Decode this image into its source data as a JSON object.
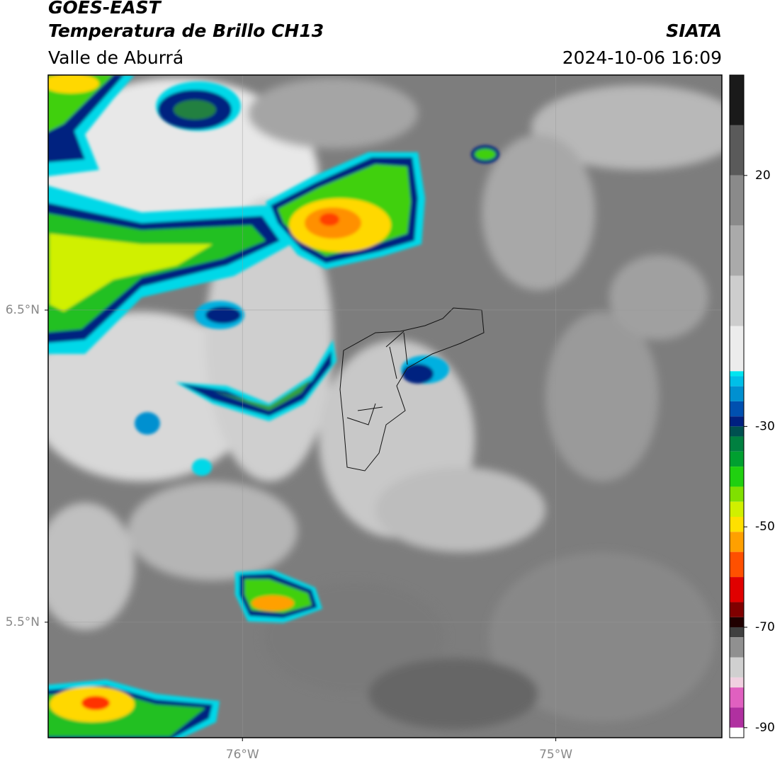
{
  "header": {
    "title": "GOES-EAST",
    "subtitle": "Temperatura de Brillo CH13",
    "source": "SIATA",
    "region": "Valle de Aburrá",
    "datetime": "2024-10-06 16:09"
  },
  "map": {
    "xlim": [
      -76.62,
      -74.47
    ],
    "ylim": [
      5.13,
      7.253
    ],
    "xticks": [
      {
        "value": -76,
        "label": "76°W"
      },
      {
        "value": -75,
        "label": "75°W"
      }
    ],
    "yticks": [
      {
        "value": 6.5,
        "label": "6.5°N"
      },
      {
        "value": 5.5,
        "label": "5.5°N"
      }
    ],
    "grid": true
  },
  "colorbar": {
    "ylim": [
      -92,
      40
    ],
    "yticks": [
      20,
      -30,
      -50,
      -70,
      -90
    ],
    "levels": [
      40,
      30,
      20,
      10,
      0,
      -10,
      -19,
      -20,
      -22,
      -25,
      -28,
      -30,
      -32,
      -35,
      -38,
      -42,
      -45,
      -48,
      -51,
      -55,
      -60,
      -65,
      -68,
      -70,
      -72,
      -76,
      -80,
      -82,
      -86,
      -90,
      -92
    ],
    "colors": [
      "#1a1a1a",
      "#5a5a5a",
      "#8a8a8a",
      "#aaaaaa",
      "#cdcdcd",
      "#ececec",
      "#00e5f0",
      "#00bfe8",
      "#0090d0",
      "#0050b0",
      "#002080",
      "#005050",
      "#008040",
      "#00a030",
      "#20d010",
      "#80e000",
      "#d0f000",
      "#ffe000",
      "#ffa000",
      "#ff5000",
      "#e00000",
      "#800000",
      "#200000",
      "#404040",
      "#909090",
      "#d0d0d0",
      "#f0d0e0",
      "#e060c0",
      "#b030a0",
      "#ffffff"
    ]
  }
}
